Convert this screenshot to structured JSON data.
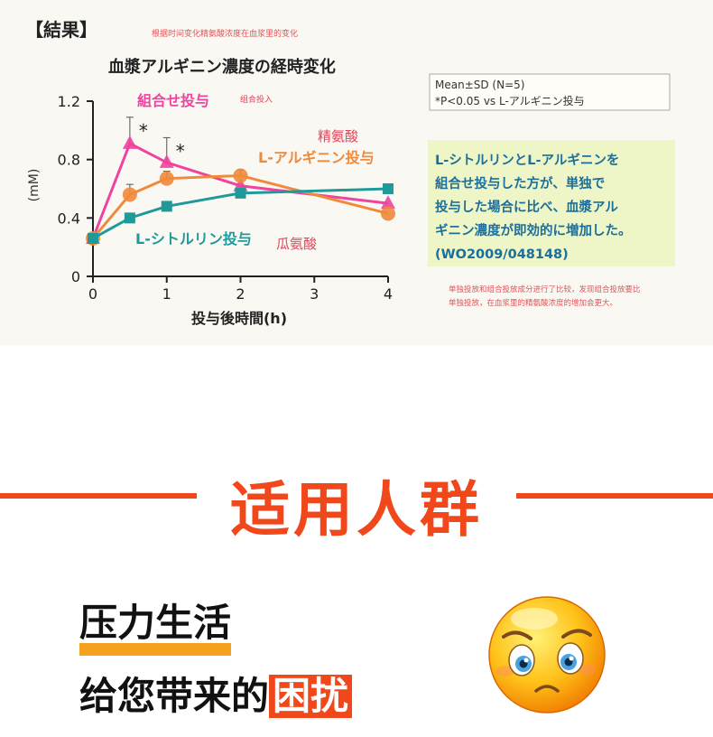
{
  "chart_data": {
    "type": "line",
    "section_label": "【結果】",
    "chinese_note_top": "根据时间变化精氨酸浓度在血浆里的变化",
    "title": "血漿アルギニン濃度の経時変化",
    "ylabel": "(mM)",
    "xlabel": "投与後時間(h)",
    "x_ticks": [
      "0",
      "1",
      "2",
      "3",
      "4"
    ],
    "y_ticks": [
      "0",
      "0.4",
      "0.8",
      "1.2"
    ],
    "xlim": [
      0,
      4
    ],
    "ylim": [
      0,
      1.2
    ],
    "series": [
      {
        "name": "組合せ投与",
        "name_note": "组合投入",
        "color": "#ee44a0",
        "marker": "triangle",
        "x": [
          0,
          0.5,
          1,
          2,
          4
        ],
        "values": [
          0.26,
          0.91,
          0.78,
          0.62,
          0.5
        ],
        "errors": [
          0,
          0.18,
          0.17,
          0,
          0
        ]
      },
      {
        "name": "L-アルギニン投与",
        "name_note": "精氨酸",
        "color": "#f08a3a",
        "marker": "circle",
        "x": [
          0,
          0.5,
          1,
          2,
          4
        ],
        "values": [
          0.26,
          0.56,
          0.67,
          0.69,
          0.43
        ],
        "errors": [
          0,
          0.07,
          0.05,
          0.04,
          0
        ]
      },
      {
        "name": "L-シトルリン投与",
        "name_note": "瓜氨酸",
        "color": "#1f9a9a",
        "marker": "square",
        "x": [
          0,
          0.5,
          1,
          2,
          4
        ],
        "values": [
          0.26,
          0.4,
          0.48,
          0.57,
          0.6
        ],
        "errors": [
          0,
          0,
          0,
          0,
          0
        ]
      }
    ],
    "significance_marks": [
      "*",
      "*"
    ],
    "stats_box": [
      "Mean±SD (N=5)",
      "*P<0.05 vs L-アルギニン投与"
    ],
    "conclusion_box": [
      "L-シトルリンとL-アルギニンを",
      "組合せ投与した方が、単独で",
      "投与した場合に比べ、血漿アル",
      "ギニン濃度が即効的に増加した。",
      "(WO2009/048148)"
    ],
    "chinese_note_bottom": [
      "单独投放和组合投放成分进行了比较，发现组合投放要比",
      "单独投放，在血浆里的精氨酸浓度的增加会更大。"
    ]
  },
  "section": {
    "title": "适用人群"
  },
  "body_text": {
    "line1": "压力生活",
    "line2_prefix": "给您带来的",
    "line2_highlight": "困扰"
  },
  "colors": {
    "accent": "#f0471b",
    "underline": "#f4a11e"
  },
  "icons": {
    "emoji": "worried-face-icon"
  }
}
